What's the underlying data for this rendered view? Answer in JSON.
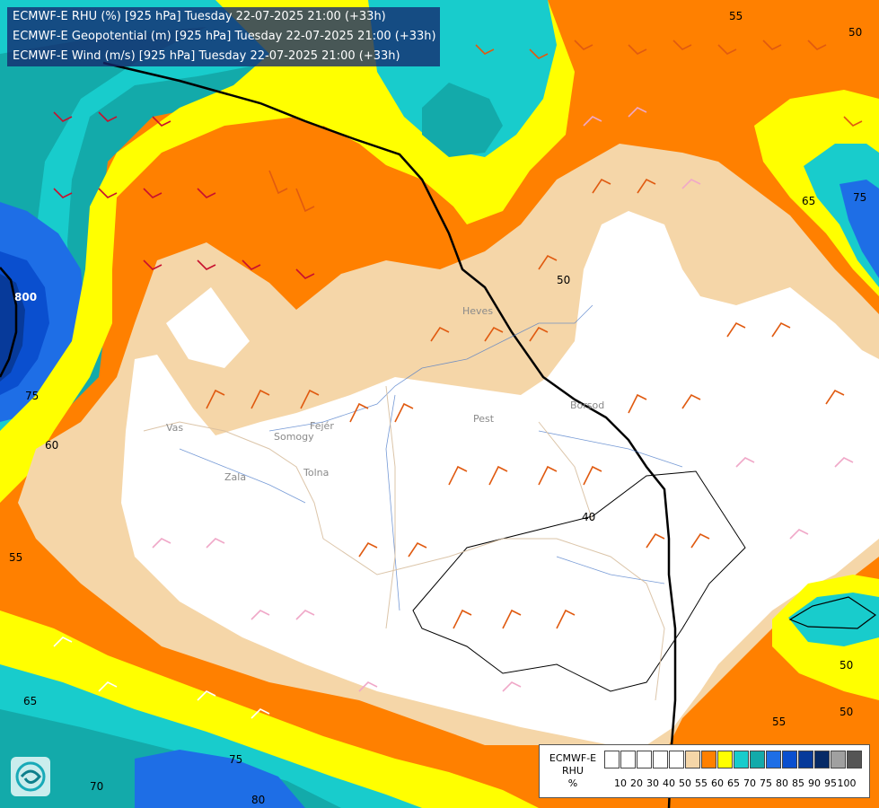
{
  "titles": {
    "line1": "ECMWF-E RHU (%) [925 hPa] Tuesday 22-07-2025 21:00 (+33h)",
    "line2": "ECMWF-E Geopotential (m) [925 hPa] Tuesday 22-07-2025 21:00 (+33h)",
    "line3": "ECMWF-E Wind (m/s) [925 hPa] Tuesday 22-07-2025 21:00 (+33h)"
  },
  "legend": {
    "model": "ECMWF-E",
    "variable": "RHU",
    "unit": "%",
    "colors": [
      "#ffffff",
      "#ffffff",
      "#ffffff",
      "#ffffff",
      "#ffffff",
      "#f5d6a8",
      "#ff8000",
      "#ffff00",
      "#18cccc",
      "#13aaaa",
      "#1e6ee6",
      "#0a4fcf",
      "#073a9a",
      "#062a66",
      "#a0a0a0",
      "#555555"
    ],
    "ticks": [
      "10",
      "20",
      "30",
      "40",
      "50",
      "55",
      "60",
      "65",
      "70",
      "75",
      "80",
      "85",
      "90",
      "95",
      "100"
    ]
  },
  "map_labels": {
    "rhu_contours": [
      "55",
      "50",
      "65",
      "75",
      "50",
      "60",
      "75",
      "55",
      "65",
      "70",
      "75",
      "80",
      "50",
      "50",
      "55",
      "40"
    ],
    "geopotential_contour": "800",
    "regions": [
      "Heves",
      "Borsod",
      "Pest",
      "Vas",
      "Zala",
      "Somogy",
      "Fejér",
      "Tolna"
    ]
  },
  "colors": {
    "white_band": "#ffffff",
    "tan_band": "#f5d6a8",
    "orange_band": "#ff8000",
    "yellow_band": "#ffff00",
    "cyan_band": "#18cccc",
    "teal_band": "#13aaaa",
    "blue_band": "#1e6ee6",
    "deep_blue_band": "#0a4fcf",
    "navy_band": "#073a9a",
    "title_background": "#14286e"
  }
}
